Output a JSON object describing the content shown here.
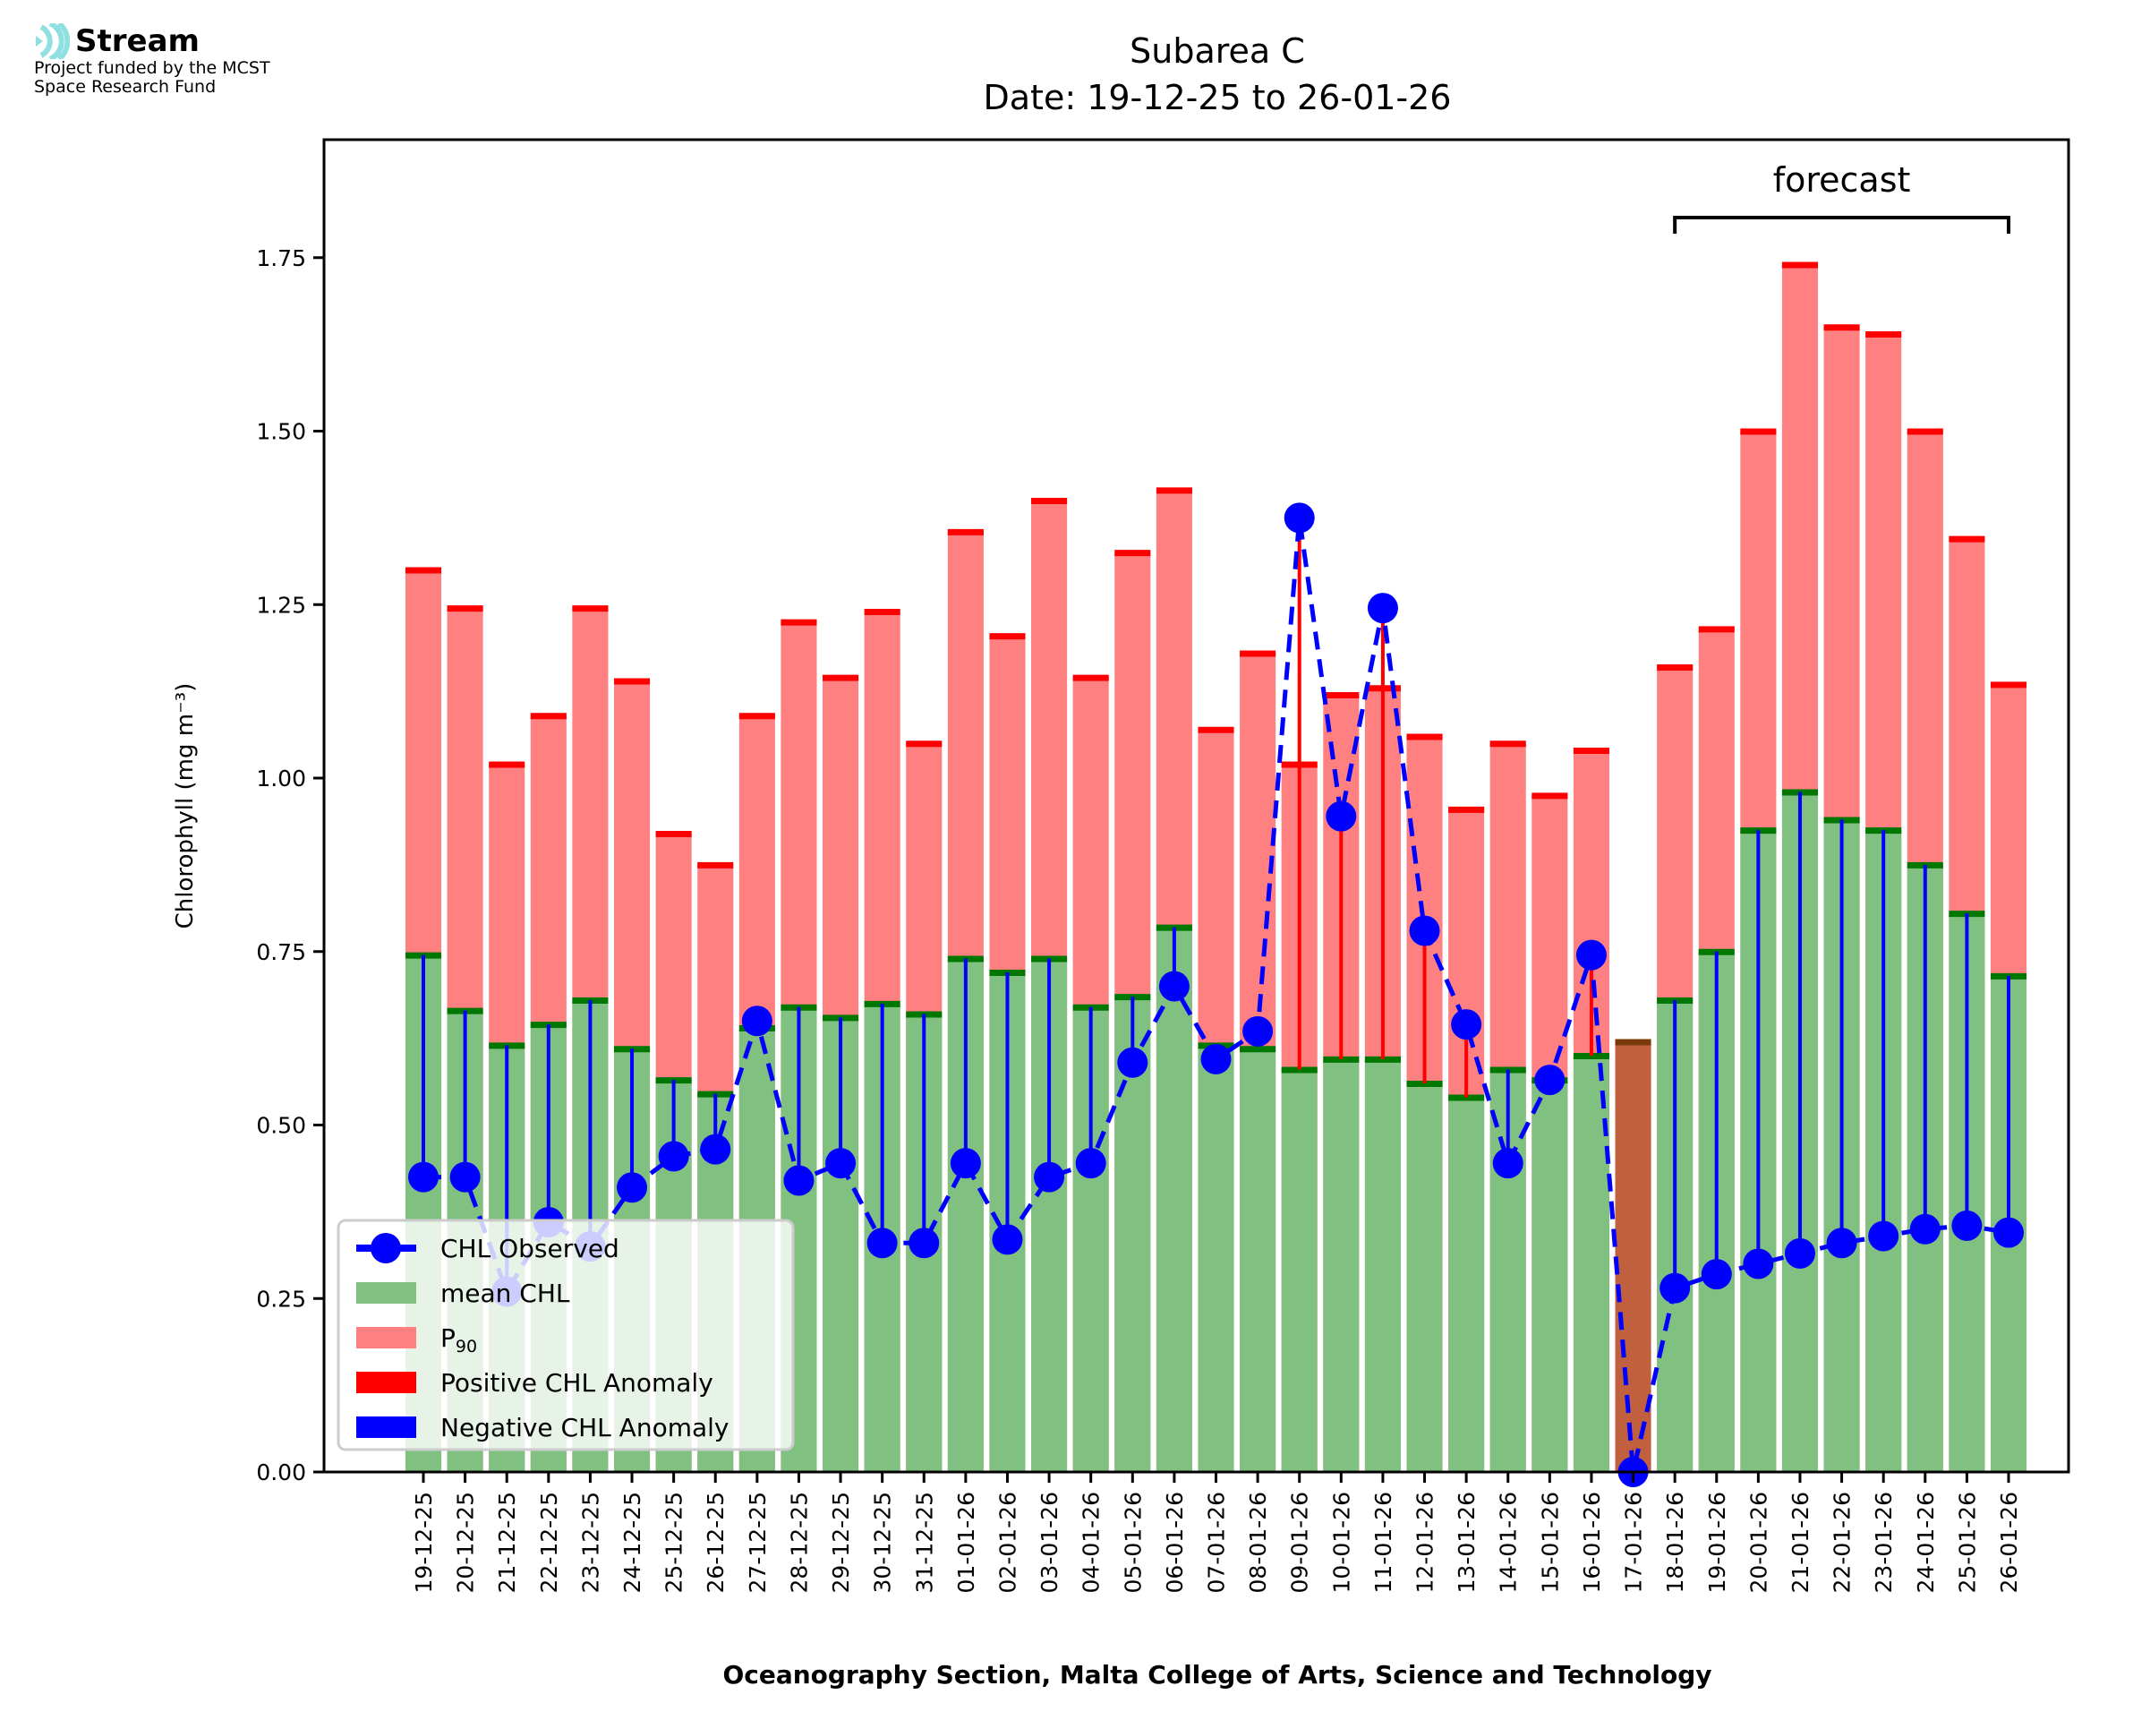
{
  "logo": {
    "brand": "Stream",
    "funding_line1": "Project funded by the MCST",
    "funding_line2": "Space Research Fund",
    "icon": "stream-waves-icon",
    "color": "#8fe0e0"
  },
  "chart_data": {
    "type": "bar",
    "title": "Subarea C",
    "subtitle": "Date: 19-12-25 to 26-01-26",
    "xlabel": "Oceanography Section, Malta College of Arts, Science and Technology",
    "ylabel": "Chlorophyll (mg m⁻³)",
    "ylim": [
      0,
      1.92
    ],
    "yticks": [
      "0.00",
      "0.25",
      "0.50",
      "0.75",
      "1.00",
      "1.25",
      "1.50",
      "1.75"
    ],
    "ytick_values": [
      0,
      0.25,
      0.5,
      0.75,
      1.0,
      1.25,
      1.5,
      1.75
    ],
    "grid": false,
    "legend_position": "lower-left",
    "annotation": {
      "text": "forecast",
      "from": "18-01-26",
      "to": "26-01-26"
    },
    "categories": [
      "19-12-25",
      "20-12-25",
      "21-12-25",
      "22-12-25",
      "23-12-25",
      "24-12-25",
      "25-12-25",
      "26-12-25",
      "27-12-25",
      "28-12-25",
      "29-12-25",
      "30-12-25",
      "31-12-25",
      "01-01-26",
      "02-01-26",
      "03-01-26",
      "04-01-26",
      "05-01-26",
      "06-01-26",
      "07-01-26",
      "08-01-26",
      "09-01-26",
      "10-01-26",
      "11-01-26",
      "12-01-26",
      "13-01-26",
      "14-01-26",
      "15-01-26",
      "16-01-26",
      "17-01-26",
      "18-01-26",
      "19-01-26",
      "20-01-26",
      "21-01-26",
      "22-01-26",
      "23-01-26",
      "24-01-26",
      "25-01-26",
      "26-01-26"
    ],
    "series": [
      {
        "name": "P₉₀",
        "color": "#ff8080",
        "values": [
          1.3,
          1.245,
          1.02,
          1.09,
          1.245,
          1.14,
          0.92,
          0.875,
          1.09,
          1.225,
          1.145,
          1.24,
          1.05,
          1.355,
          1.205,
          1.4,
          1.145,
          1.325,
          1.415,
          1.07,
          1.18,
          1.02,
          1.12,
          1.13,
          1.06,
          0.955,
          1.05,
          0.975,
          1.04,
          null,
          1.16,
          1.215,
          1.5,
          1.74,
          1.65,
          1.64,
          1.5,
          1.345,
          1.135
        ]
      },
      {
        "name": "mean CHL",
        "color": "#80c080",
        "values": [
          0.745,
          0.665,
          0.615,
          0.645,
          0.68,
          0.61,
          0.565,
          0.545,
          0.64,
          0.67,
          0.655,
          0.675,
          0.66,
          0.74,
          0.72,
          0.74,
          0.67,
          0.685,
          0.785,
          0.615,
          0.61,
          0.58,
          0.595,
          0.595,
          0.56,
          0.54,
          0.58,
          0.565,
          0.6,
          0.62,
          0.68,
          0.75,
          0.925,
          0.98,
          0.94,
          0.925,
          0.875,
          0.805,
          0.715
        ]
      },
      {
        "name": "CHL Observed",
        "color": "#0000ff",
        "values": [
          0.425,
          0.425,
          0.26,
          0.36,
          0.325,
          0.41,
          0.455,
          0.465,
          0.65,
          0.42,
          0.445,
          0.33,
          0.33,
          0.445,
          0.335,
          0.425,
          0.445,
          0.59,
          0.7,
          0.595,
          0.635,
          1.375,
          0.945,
          1.245,
          0.78,
          0.645,
          0.445,
          0.565,
          0.745,
          0.0,
          0.265,
          0.285,
          0.3,
          0.315,
          0.33,
          0.34,
          0.35,
          0.355,
          0.345
        ]
      }
    ],
    "no_data_bar": {
      "category": "17-01-26",
      "value": 0.62,
      "color": "#c0603f"
    },
    "legend": [
      {
        "label": "CHL Observed",
        "color": "#0000ff",
        "kind": "line-marker"
      },
      {
        "label": "mean CHL",
        "color": "#80c080",
        "kind": "patch"
      },
      {
        "label_main": "P",
        "label_sub": "90",
        "color": "#ff8080",
        "kind": "patch"
      },
      {
        "label": "Positive CHL Anomaly",
        "color": "#ff0000",
        "kind": "patch"
      },
      {
        "label": "Negative CHL Anomaly",
        "color": "#0000ff",
        "kind": "patch"
      }
    ]
  }
}
